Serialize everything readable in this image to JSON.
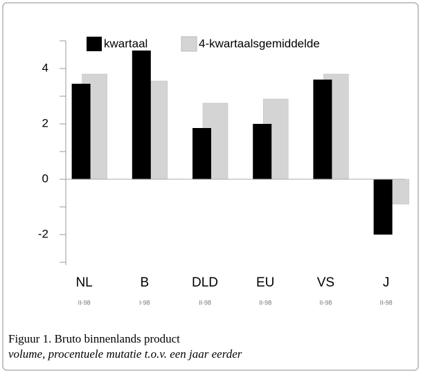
{
  "chart_data": {
    "type": "bar",
    "title": "Figuur 1. Bruto binnenlands product",
    "subtitle": "volume, procentuele mutatie t.o.v. een jaar eerder",
    "categories": [
      "NL",
      "B",
      "DLD",
      "EU",
      "VS",
      "J"
    ],
    "periods": [
      "II-98",
      "I-98",
      "II-98",
      "II-98",
      "II-98",
      "II-98"
    ],
    "series": [
      {
        "name": "kwartaal",
        "color": "#000000",
        "values": [
          3.45,
          4.65,
          1.85,
          2.0,
          3.6,
          -2.0
        ]
      },
      {
        "name": "4-kwartaalsgemiddelde",
        "color": "#d4d4d4",
        "values": [
          3.8,
          3.55,
          2.75,
          2.9,
          3.8,
          -0.9
        ]
      }
    ],
    "ylim": [
      -3.1,
      5
    ],
    "yticks": [
      -2,
      0,
      2,
      4
    ],
    "yticks_minor": [
      -3,
      -1,
      1,
      3,
      5
    ]
  }
}
